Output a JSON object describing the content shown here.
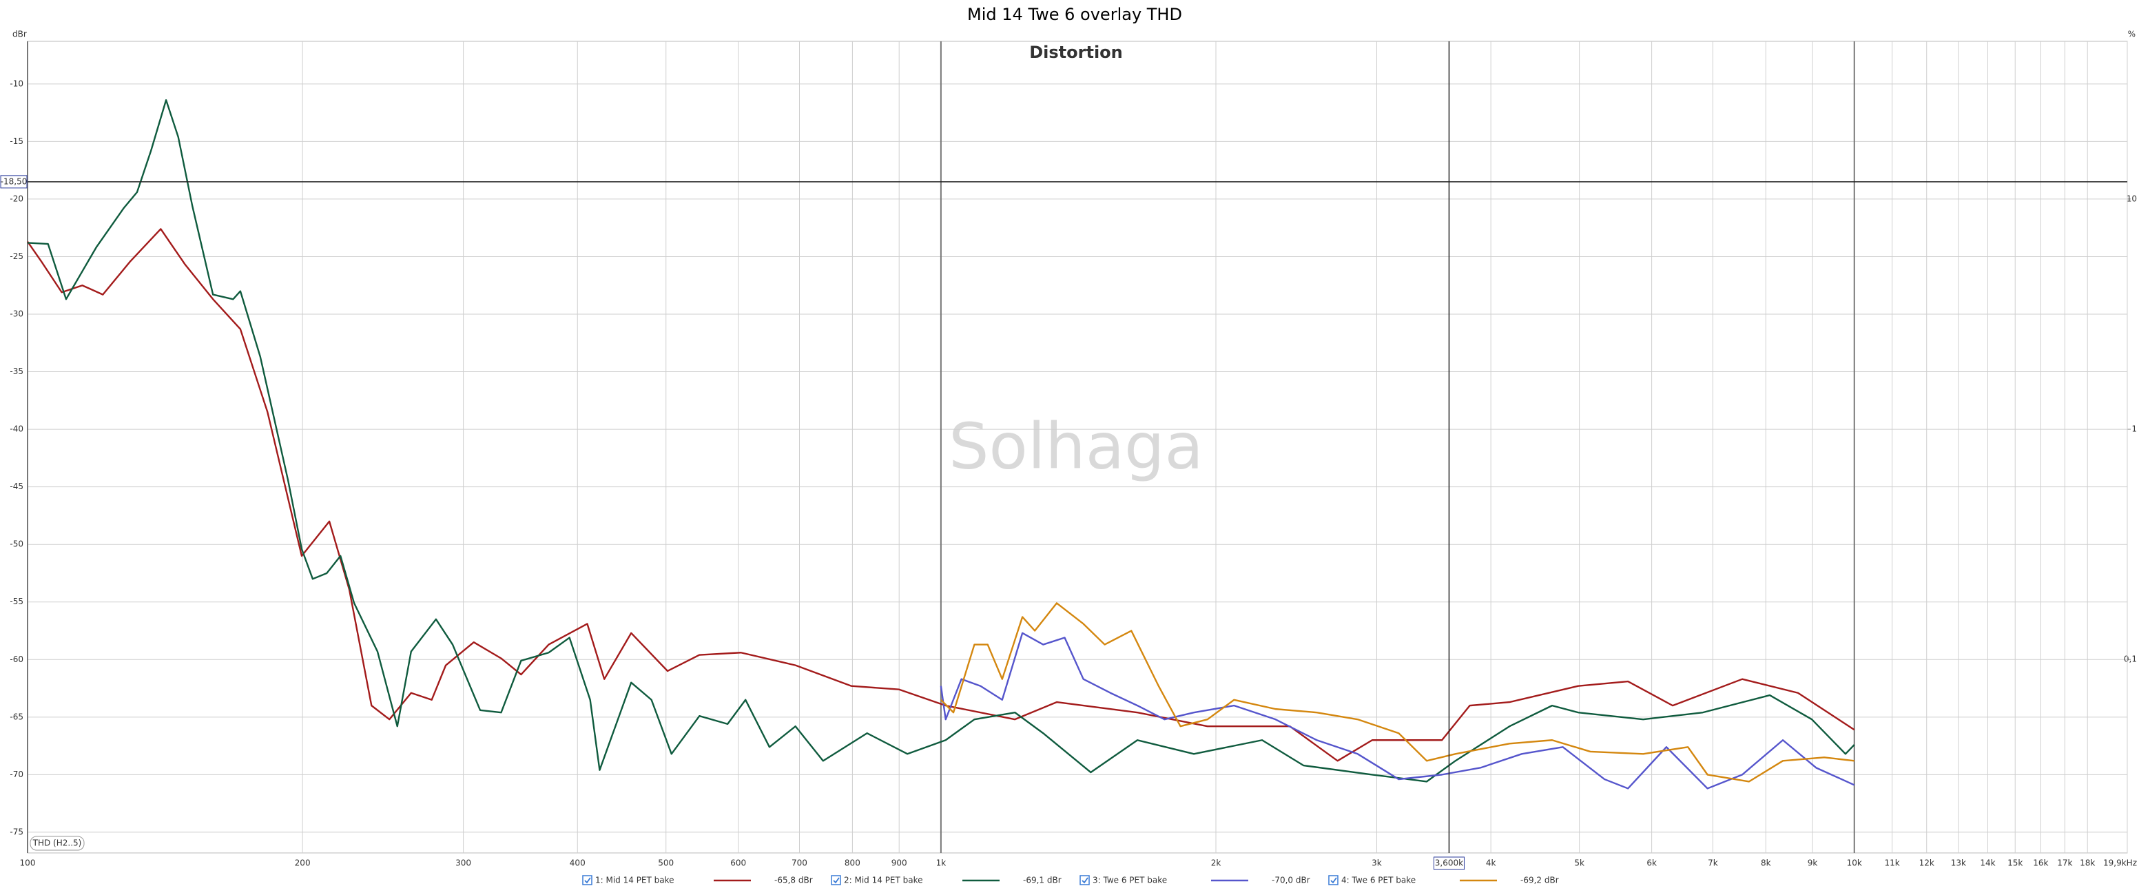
{
  "chart_data": {
    "type": "line",
    "title": "Mid 14 Twe 6 overlay THD",
    "subtitle": "Distortion",
    "watermark": "Solhaga",
    "y_label": "dBr",
    "y2_label": "%",
    "annotation": "THD (H2..5)",
    "xlim": [
      100,
      19900
    ],
    "xlog": true,
    "ylim": [
      -76.8,
      -6.3
    ],
    "y2lim": [
      0.01445,
      48.4
    ],
    "y2log": true,
    "grid": true,
    "xticks": [
      100,
      200,
      300,
      400,
      500,
      600,
      700,
      800,
      900,
      {
        "value": 1000,
        "label": "1k"
      },
      {
        "value": 2000,
        "label": "2k"
      },
      {
        "value": 3000,
        "label": "3k"
      },
      {
        "value": 4000,
        "label": "4k"
      },
      {
        "value": 5000,
        "label": "5k"
      },
      {
        "value": 6000,
        "label": "6k"
      },
      {
        "value": 7000,
        "label": "7k"
      },
      {
        "value": 8000,
        "label": "8k"
      },
      {
        "value": 9000,
        "label": "9k"
      },
      {
        "value": 10000,
        "label": "10k"
      },
      {
        "value": 11000,
        "label": "11k"
      },
      {
        "value": 12000,
        "label": "12k"
      },
      {
        "value": 13000,
        "label": "13k"
      },
      {
        "value": 14000,
        "label": "14k"
      },
      {
        "value": 15000,
        "label": "15k"
      },
      {
        "value": 16000,
        "label": "16k"
      },
      {
        "value": 17000,
        "label": "17k"
      },
      {
        "value": 18000,
        "label": "18k"
      },
      {
        "value": 19900,
        "label": "19,9kHz"
      }
    ],
    "yticks": [
      -10,
      -15,
      -20,
      -25,
      -30,
      -35,
      -40,
      -45,
      -50,
      -55,
      -60,
      -65,
      -70,
      -75
    ],
    "y2ticks": [
      10,
      1,
      {
        "value": 0.1,
        "label": "0,1"
      }
    ],
    "cursor": {
      "x": {
        "value": 3600,
        "label": "3,600k"
      },
      "y": {
        "value": -18.5,
        "label": "-18,50"
      }
    },
    "series": [
      {
        "name": "1: Mid 14 PET bake",
        "color": "#a31b1b",
        "cursor_value": {
          "value": -65.8,
          "label": "-65,8 dBr"
        },
        "x": [
          100,
          103.5,
          109,
          114.8,
          120.9,
          129.6,
          139.9,
          148.8,
          159.6,
          171,
          183.1,
          199.6,
          214,
          225,
          238,
          249,
          263,
          277,
          287,
          308,
          330,
          347,
          372,
          410,
          428,
          458,
          502,
          544,
          604,
          693,
          798,
          900,
          1012,
          1205,
          1339,
          1641,
          1958,
          2410,
          2718,
          2966,
          3536,
          3793,
          4193,
          4985,
          5652,
          6326,
          7539,
          8676,
          10000
        ],
        "values": [
          -23.7,
          -25.4,
          -28.1,
          -27.5,
          -28.3,
          -25.4,
          -22.6,
          -25.7,
          -28.7,
          -31.3,
          -38.5,
          -51,
          -48,
          -53.9,
          -64,
          -65.2,
          -62.9,
          -63.5,
          -60.5,
          -58.5,
          -59.9,
          -61.3,
          -58.7,
          -56.9,
          -61.7,
          -57.7,
          -61,
          -59.6,
          -59.4,
          -60.5,
          -62.3,
          -62.6,
          -64,
          -65.2,
          -63.7,
          -64.6,
          -65.8,
          -65.8,
          -68.8,
          -67,
          -67,
          -64,
          -63.7,
          -62.3,
          -61.9,
          -64,
          -61.7,
          -62.9,
          -66.1
        ]
      },
      {
        "name": "2: Mid 14 PET bake",
        "color": "#0f5b3e",
        "cursor_value": {
          "value": -69.1,
          "label": "-69,1 dBr"
        },
        "x": [
          100,
          105.3,
          110.2,
          118.9,
          127.4,
          131.8,
          136.5,
          141.8,
          146.2,
          151.5,
          159.6,
          167.9,
          171,
          179.8,
          192.8,
          199.6,
          205.2,
          212.6,
          220.1,
          227.8,
          241.6,
          254,
          263,
          280,
          292,
          313,
          330,
          347,
          372,
          392,
          413,
          423,
          458,
          482,
          507,
          544,
          584,
          611,
          649,
          693,
          743,
          830,
          919,
          1012,
          1088,
          1205,
          1294,
          1459,
          1641,
          1892,
          2247,
          2494,
          2966,
          3403,
          3658,
          4193,
          4668,
          4985,
          5873,
          6826,
          8080,
          8985,
          9780,
          10000
        ],
        "values": [
          -23.8,
          -23.9,
          -28.7,
          -24.2,
          -20.8,
          -19.4,
          -15.8,
          -11.4,
          -14.6,
          -20.6,
          -28.3,
          -28.7,
          -28,
          -33.7,
          -44.4,
          -50.4,
          -53,
          -52.5,
          -51,
          -55.1,
          -59.3,
          -65.8,
          -59.3,
          -56.5,
          -58.7,
          -64.4,
          -64.6,
          -60.1,
          -59.4,
          -58.1,
          -63.5,
          -69.6,
          -62,
          -63.5,
          -68.2,
          -64.9,
          -65.6,
          -63.5,
          -67.6,
          -65.8,
          -68.8,
          -66.4,
          -68.2,
          -67,
          -65.2,
          -64.6,
          -66.4,
          -69.8,
          -67,
          -68.2,
          -67,
          -69.2,
          -70,
          -70.6,
          -68.8,
          -65.8,
          -64,
          -64.6,
          -65.2,
          -64.6,
          -63.1,
          -65.2,
          -68.2,
          -67.4
        ]
      },
      {
        "name": "3: Twe 6 PET bake",
        "color": "#5555cc",
        "cursor_value": {
          "value": -70.0,
          "label": "-70,0 dBr"
        },
        "x": [
          1000,
          1012,
          1053,
          1105,
          1167,
          1228,
          1294,
          1366,
          1432,
          1533,
          1641,
          1757,
          1892,
          2094,
          2324,
          2579,
          2859,
          3171,
          3536,
          3897,
          4324,
          4796,
          5327,
          5652,
          6226,
          6906,
          7539,
          8352,
          9081,
          10000
        ],
        "values": [
          -62.3,
          -65.2,
          -61.7,
          -62.3,
          -63.5,
          -57.7,
          -58.7,
          -58.1,
          -61.7,
          -62.9,
          -64,
          -65.2,
          -64.6,
          -64,
          -65.2,
          -67,
          -68.2,
          -70.4,
          -70,
          -69.4,
          -68.2,
          -67.6,
          -70.4,
          -71.2,
          -67.6,
          -71.2,
          -70,
          -67,
          -69.4,
          -70.9
        ]
      },
      {
        "name": "4: Twe 6 PET bake",
        "color": "#d4870f",
        "cursor_value": {
          "value": -69.2,
          "label": "-69,2 dBr"
        },
        "x": [
          1000,
          1032,
          1088,
          1125,
          1167,
          1228,
          1267,
          1339,
          1432,
          1511,
          1616,
          1731,
          1829,
          1958,
          2094,
          2324,
          2579,
          2859,
          3171,
          3403,
          3658,
          4193,
          4668,
          5140,
          5873,
          6574,
          6906,
          7669,
          8352,
          9269,
          10000
        ],
        "values": [
          -63.5,
          -64.6,
          -58.7,
          -58.7,
          -61.7,
          -56.3,
          -57.5,
          -55.1,
          -56.9,
          -58.7,
          -57.5,
          -62.3,
          -65.8,
          -65.2,
          -63.5,
          -64.3,
          -64.6,
          -65.2,
          -66.4,
          -68.8,
          -68.2,
          -67.3,
          -67,
          -68,
          -68.2,
          -67.6,
          -70,
          -70.6,
          -68.8,
          -68.5,
          -68.8
        ]
      }
    ]
  }
}
